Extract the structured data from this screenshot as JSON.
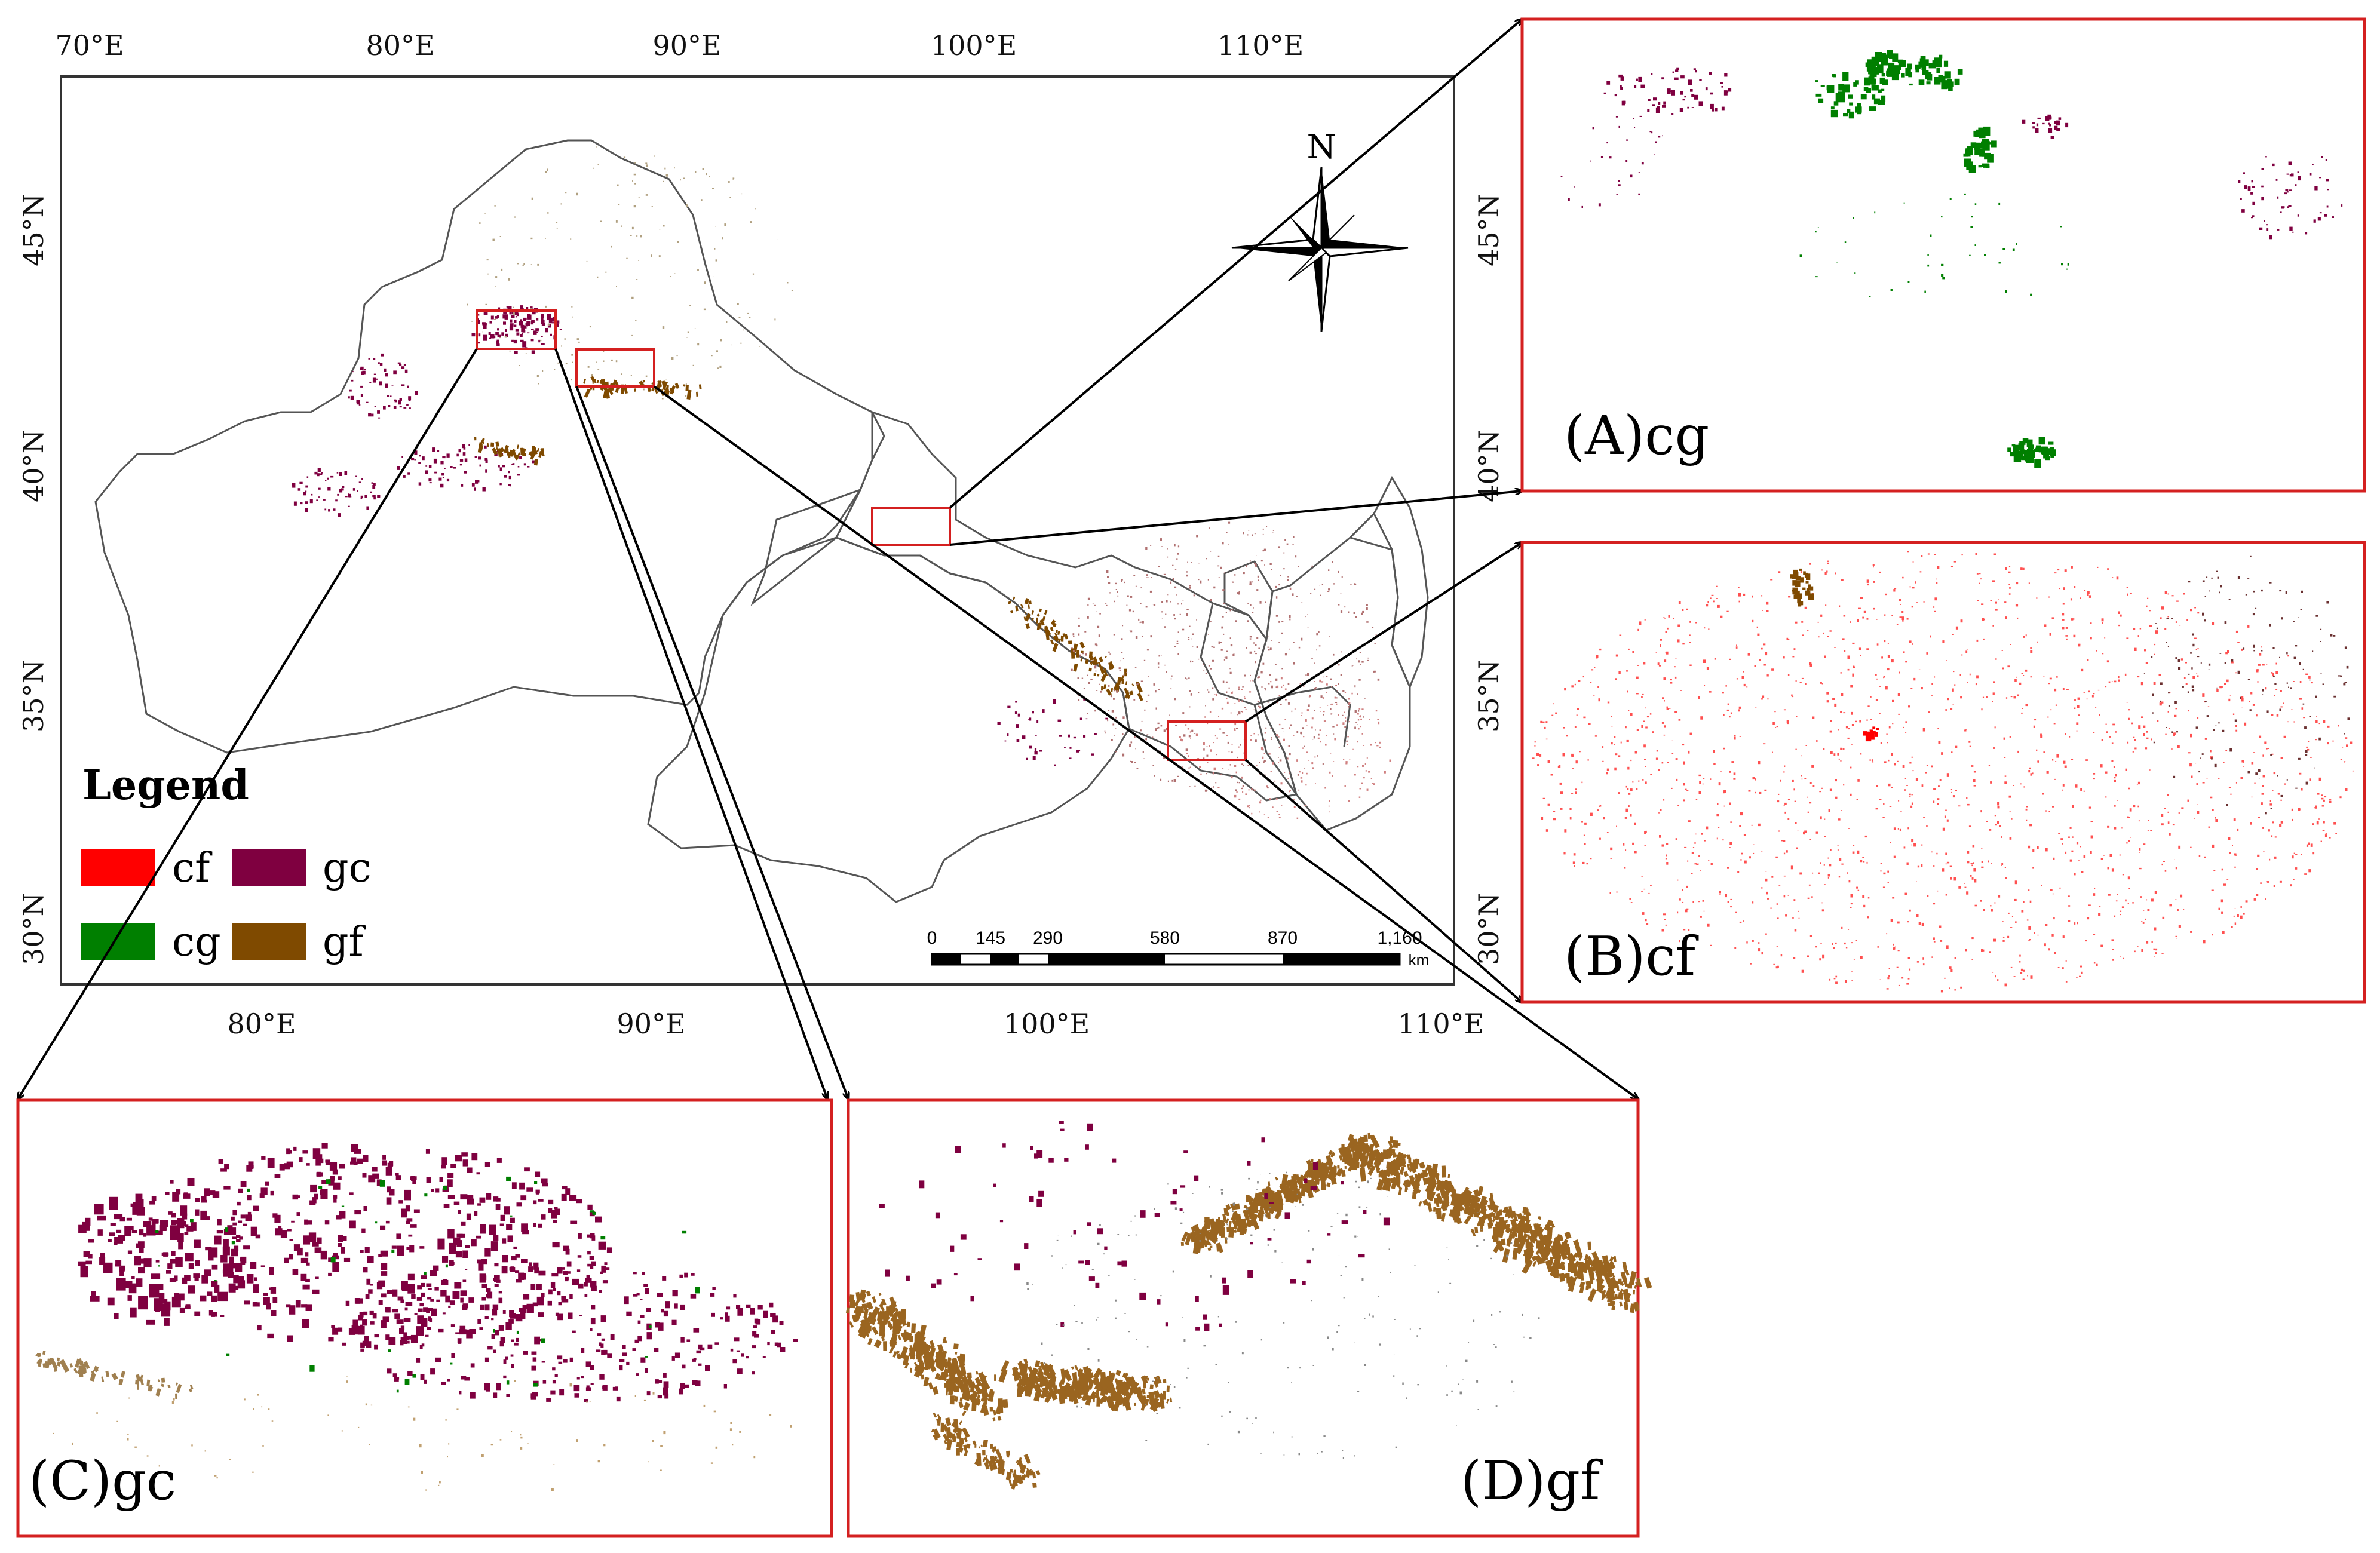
{
  "main_map": {
    "top_lon_ticks": [
      "70°E",
      "80°E",
      "90°E",
      "100°E",
      "110°E"
    ],
    "bottom_lon_ticks": [
      "80°E",
      "90°E",
      "100°E",
      "110°E"
    ],
    "left_lat_ticks": [
      "45°N",
      "40°N",
      "35°N",
      "30°N"
    ],
    "right_lat_ticks": [
      "45°N",
      "40°N",
      "35°N",
      "30°N"
    ],
    "north_label": "N",
    "scale_bar": {
      "ticks": [
        "0",
        "145",
        "290",
        "580",
        "870",
        "1,160"
      ],
      "unit": "km"
    }
  },
  "legend": {
    "title": "Legend",
    "items": [
      {
        "label": "cf",
        "color": "#ff0000"
      },
      {
        "label": "gc",
        "color": "#7f0040"
      },
      {
        "label": "cg",
        "color": "#007f00"
      },
      {
        "label": "gf",
        "color": "#7f4a00"
      }
    ]
  },
  "insets": [
    {
      "id": "A",
      "label": "(A)cg",
      "dominant_color": "#008000"
    },
    {
      "id": "B",
      "label": "(B)cf",
      "dominant_color": "#ff2020"
    },
    {
      "id": "C",
      "label": "(C)gc",
      "dominant_color": "#8a0a55"
    },
    {
      "id": "D",
      "label": "(D)gf",
      "dominant_color": "#8b5a14"
    }
  ],
  "colors": {
    "frame": "#d42020",
    "boundary": "#555555",
    "arrow": "#000000"
  }
}
